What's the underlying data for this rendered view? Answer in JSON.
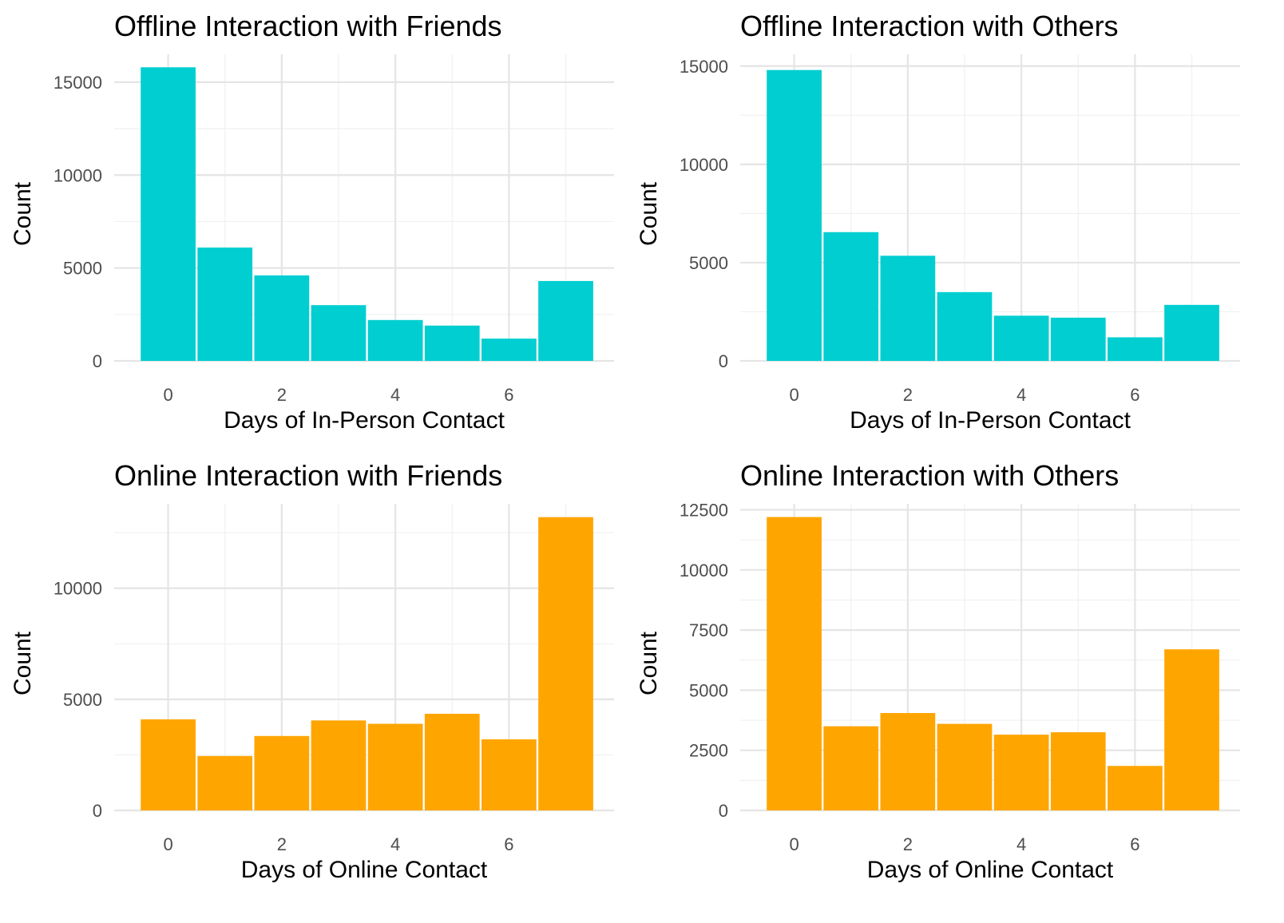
{
  "chart_data": [
    {
      "type": "bar",
      "title": "Offline Interaction with Friends",
      "xlabel": "Days of In-Person Contact",
      "ylabel": "Count",
      "color": "#00CED1",
      "x": [
        0,
        1,
        2,
        3,
        4,
        5,
        6,
        7
      ],
      "values": [
        15800,
        6100,
        4600,
        3000,
        2200,
        1900,
        1200,
        4300
      ],
      "xticks": [
        0,
        2,
        4,
        6
      ],
      "yticks": [
        0,
        5000,
        10000,
        15000
      ],
      "ylim": [
        0,
        16500
      ],
      "xlim": [
        -0.95,
        7.85
      ],
      "grid": true
    },
    {
      "type": "bar",
      "title": "Offline Interaction with Others",
      "xlabel": "Days of In-Person Contact",
      "ylabel": "Count",
      "color": "#00CED1",
      "x": [
        0,
        1,
        2,
        3,
        4,
        5,
        6,
        7
      ],
      "values": [
        14800,
        6550,
        5350,
        3500,
        2300,
        2200,
        1200,
        2850
      ],
      "xticks": [
        0,
        2,
        4,
        6
      ],
      "yticks": [
        0,
        5000,
        10000,
        15000
      ],
      "ylim": [
        0,
        15600
      ],
      "xlim": [
        -0.95,
        7.85
      ],
      "grid": true
    },
    {
      "type": "bar",
      "title": "Online Interaction with Friends",
      "xlabel": "Days of Online Contact",
      "ylabel": "Count",
      "color": "#FFA500",
      "x": [
        0,
        1,
        2,
        3,
        4,
        5,
        6,
        7
      ],
      "values": [
        4100,
        2450,
        3350,
        4050,
        3900,
        4350,
        3200,
        13200
      ],
      "xticks": [
        0,
        2,
        4,
        6
      ],
      "yticks": [
        0,
        5000,
        10000
      ],
      "ylim": [
        0,
        13800
      ],
      "xlim": [
        -0.95,
        7.85
      ],
      "grid": true
    },
    {
      "type": "bar",
      "title": "Online Interaction with Others",
      "xlabel": "Days of Online Contact",
      "ylabel": "Count",
      "color": "#FFA500",
      "x": [
        0,
        1,
        2,
        3,
        4,
        5,
        6,
        7
      ],
      "values": [
        12200,
        3500,
        4050,
        3600,
        3150,
        3250,
        1850,
        6700
      ],
      "xticks": [
        0,
        2,
        4,
        6
      ],
      "yticks": [
        0,
        2500,
        5000,
        7500,
        10000,
        12500
      ],
      "ylim": [
        0,
        12750
      ],
      "xlim": [
        -0.95,
        7.85
      ],
      "grid": true
    }
  ]
}
